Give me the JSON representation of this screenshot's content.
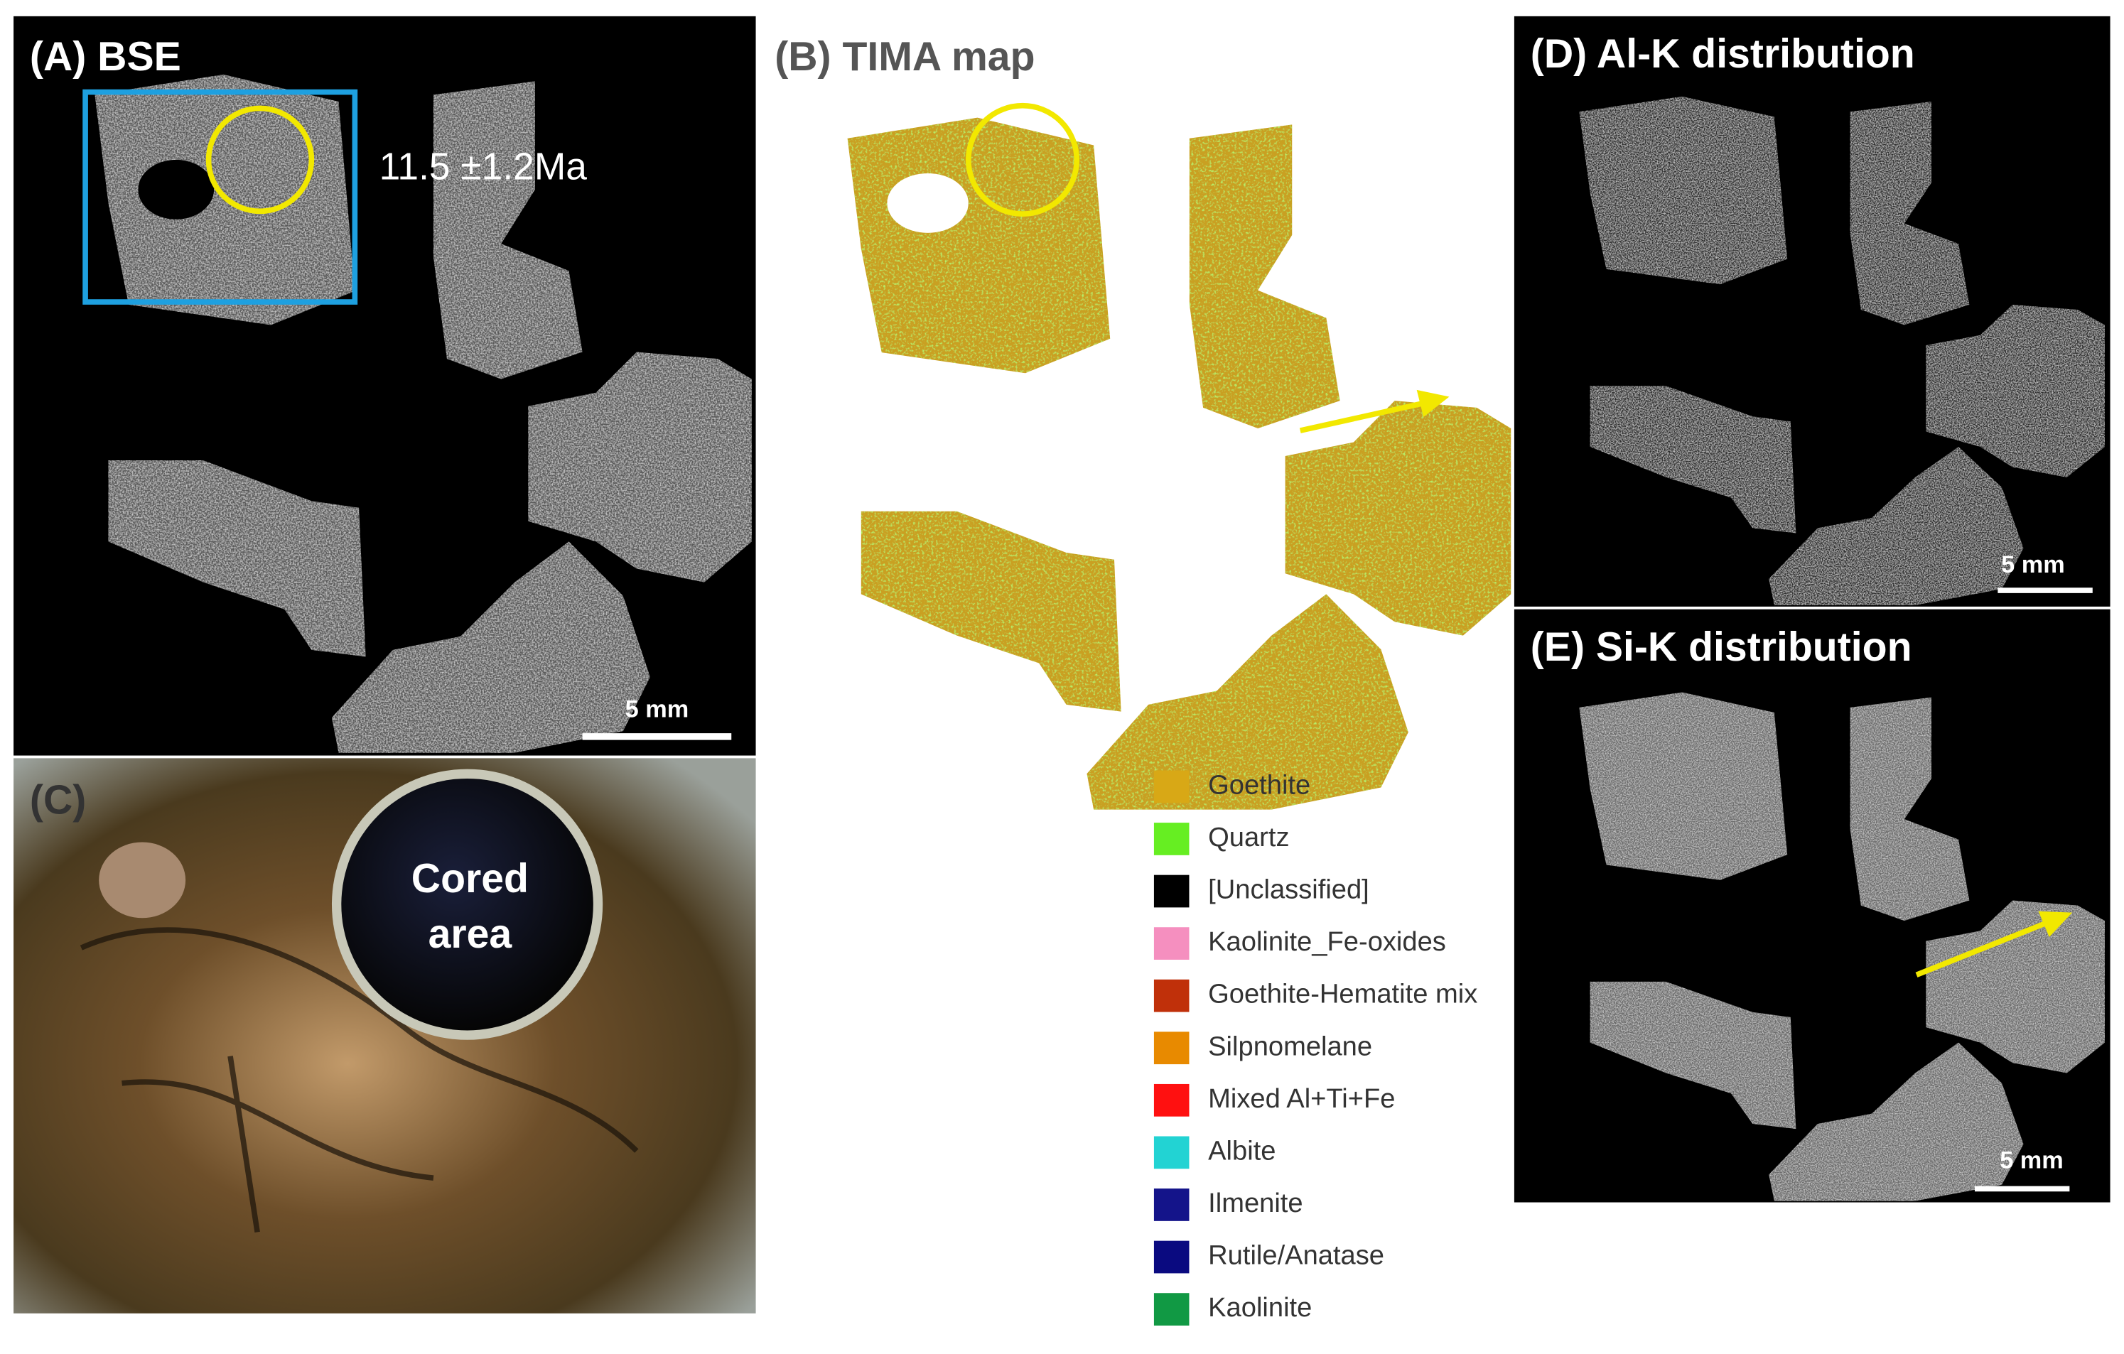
{
  "panels": {
    "a": {
      "label": "(A) BSE",
      "annotation": "11.5 ±1.2Ma",
      "scale_bar": "5 mm"
    },
    "b": {
      "label": "(B) TIMA map",
      "legend": [
        {
          "label": "Goethite",
          "color": "#d8a816"
        },
        {
          "label": "Quartz",
          "color": "#66ee22"
        },
        {
          "label": "[Unclassified]",
          "color": "#000000"
        },
        {
          "label": "Kaolinite_Fe-oxides",
          "color": "#f58fbf"
        },
        {
          "label": "Goethite-Hematite mix",
          "color": "#c0300a"
        },
        {
          "label": "Silpnomelane",
          "color": "#e88a00"
        },
        {
          "label": "Mixed Al+Ti+Fe",
          "color": "#ff1010"
        },
        {
          "label": "Albite",
          "color": "#22d3d3"
        },
        {
          "label": "Ilmenite",
          "color": "#14148a"
        },
        {
          "label": "Rutile/Anatase",
          "color": "#0a0a80"
        },
        {
          "label": "Kaolinite",
          "color": "#119944"
        }
      ]
    },
    "c": {
      "label": "(C)",
      "annotation": [
        "Cored",
        "area"
      ]
    },
    "d": {
      "label": "(D) Al-K distribution",
      "scale_bar": "5 mm"
    },
    "e": {
      "label": "(E) Si-K distribution",
      "scale_bar": "5 mm"
    }
  }
}
